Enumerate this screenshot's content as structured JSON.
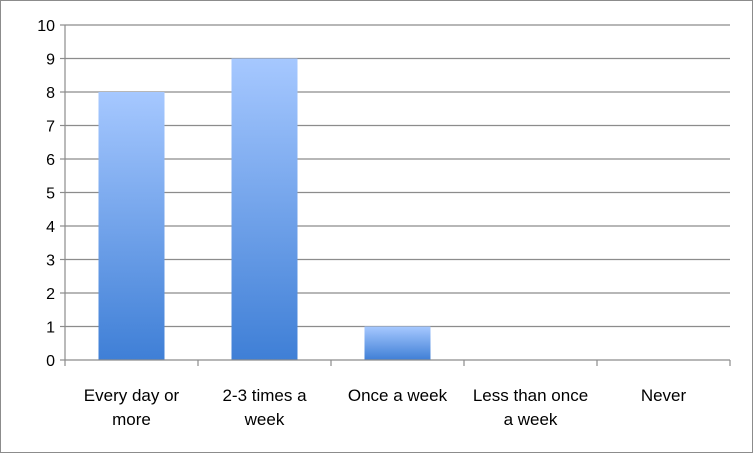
{
  "chart_data": {
    "type": "bar",
    "categories": [
      [
        "Every day or",
        "more"
      ],
      [
        "2-3 times a",
        "week"
      ],
      [
        "Once a week"
      ],
      [
        "Less than once",
        "a week"
      ],
      [
        "Never"
      ]
    ],
    "values": [
      8,
      9,
      1,
      0,
      0
    ],
    "ylim": [
      0,
      10
    ],
    "yticks": [
      "0",
      "1",
      "2",
      "3",
      "4",
      "5",
      "6",
      "7",
      "8",
      "9",
      "10"
    ],
    "grid": true,
    "legend": "none",
    "colors": {
      "bar_top": "#a6c8ff",
      "bar_bottom": "#3f7fd6",
      "grid": "#8c8c8c",
      "axis": "#8c8c8c"
    }
  }
}
